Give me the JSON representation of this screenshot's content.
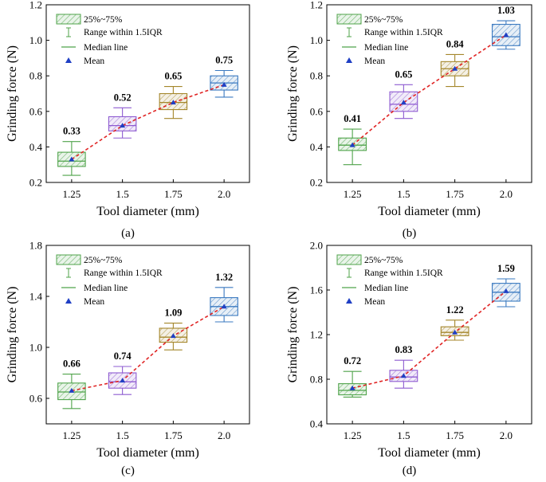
{
  "legend": {
    "box": "25%~75%",
    "range": "Range within 1.5IQR",
    "median": "Median line",
    "mean": "Mean"
  },
  "colors": {
    "box_fills": [
      "#4fa34a",
      "#8e5bd1",
      "#a4862a",
      "#3a79c0"
    ],
    "mean_marker": "#1f3fc4",
    "trend_line": "#e02424"
  },
  "chart_data": [
    {
      "type": "box",
      "caption": "(a)",
      "xlabel": "Tool diameter (mm)",
      "ylabel": "Grinding force (N)",
      "categories": [
        "1.25",
        "1.5",
        "1.75",
        "2.0"
      ],
      "ylim": [
        0.2,
        1.2
      ],
      "yticks": [
        "0.2",
        "0.4",
        "0.6",
        "0.8",
        "1.0",
        "1.2"
      ],
      "means": [
        0.33,
        0.52,
        0.65,
        0.75
      ],
      "mean_labels": [
        "0.33",
        "0.52",
        "0.65",
        "0.75"
      ],
      "boxes": [
        {
          "whisker_low": 0.24,
          "q1": 0.29,
          "median": 0.32,
          "q3": 0.37,
          "whisker_high": 0.43
        },
        {
          "whisker_low": 0.45,
          "q1": 0.49,
          "median": 0.52,
          "q3": 0.57,
          "whisker_high": 0.62
        },
        {
          "whisker_low": 0.56,
          "q1": 0.61,
          "median": 0.65,
          "q3": 0.7,
          "whisker_high": 0.74
        },
        {
          "whisker_low": 0.68,
          "q1": 0.72,
          "median": 0.76,
          "q3": 0.8,
          "whisker_high": 0.83
        }
      ]
    },
    {
      "type": "box",
      "caption": "(b)",
      "xlabel": "Tool diameter (mm)",
      "ylabel": "Grinding force (N)",
      "categories": [
        "1.25",
        "1.5",
        "1.75",
        "2.0"
      ],
      "ylim": [
        0.2,
        1.2
      ],
      "yticks": [
        "0.2",
        "0.4",
        "0.6",
        "0.8",
        "1.0",
        "1.2"
      ],
      "means": [
        0.41,
        0.65,
        0.84,
        1.03
      ],
      "mean_labels": [
        "0.41",
        "0.65",
        "0.84",
        "1.03"
      ],
      "boxes": [
        {
          "whisker_low": 0.3,
          "q1": 0.38,
          "median": 0.41,
          "q3": 0.45,
          "whisker_high": 0.5
        },
        {
          "whisker_low": 0.56,
          "q1": 0.6,
          "median": 0.64,
          "q3": 0.71,
          "whisker_high": 0.75
        },
        {
          "whisker_low": 0.74,
          "q1": 0.8,
          "median": 0.84,
          "q3": 0.88,
          "whisker_high": 0.92
        },
        {
          "whisker_low": 0.95,
          "q1": 0.97,
          "median": 1.02,
          "q3": 1.09,
          "whisker_high": 1.11
        }
      ]
    },
    {
      "type": "box",
      "caption": "(c)",
      "xlabel": "Tool diameter (mm)",
      "ylabel": "Grinding force (N)",
      "categories": [
        "1.25",
        "1.5",
        "1.75",
        "2.0"
      ],
      "ylim": [
        0.4,
        1.8
      ],
      "yticks": [
        "0.6",
        "1.0",
        "1.4",
        "1.8"
      ],
      "means": [
        0.66,
        0.74,
        1.09,
        1.32
      ],
      "mean_labels": [
        "0.66",
        "0.74",
        "1.09",
        "1.32"
      ],
      "boxes": [
        {
          "whisker_low": 0.52,
          "q1": 0.59,
          "median": 0.65,
          "q3": 0.72,
          "whisker_high": 0.79
        },
        {
          "whisker_low": 0.63,
          "q1": 0.68,
          "median": 0.73,
          "q3": 0.8,
          "whisker_high": 0.85
        },
        {
          "whisker_low": 0.98,
          "q1": 1.04,
          "median": 1.08,
          "q3": 1.15,
          "whisker_high": 1.19
        },
        {
          "whisker_low": 1.2,
          "q1": 1.25,
          "median": 1.32,
          "q3": 1.39,
          "whisker_high": 1.47
        }
      ]
    },
    {
      "type": "box",
      "caption": "(d)",
      "xlabel": "Tool diameter (mm)",
      "ylabel": "Grinding force (N)",
      "categories": [
        "1.25",
        "1.5",
        "1.75",
        "2.0"
      ],
      "ylim": [
        0.4,
        2.0
      ],
      "yticks": [
        "0.4",
        "0.8",
        "1.2",
        "1.6",
        "2.0"
      ],
      "means": [
        0.72,
        0.83,
        1.22,
        1.59
      ],
      "mean_labels": [
        "0.72",
        "0.83",
        "1.22",
        "1.59"
      ],
      "boxes": [
        {
          "whisker_low": 0.64,
          "q1": 0.66,
          "median": 0.7,
          "q3": 0.76,
          "whisker_high": 0.87
        },
        {
          "whisker_low": 0.72,
          "q1": 0.78,
          "median": 0.82,
          "q3": 0.88,
          "whisker_high": 0.97
        },
        {
          "whisker_low": 1.15,
          "q1": 1.19,
          "median": 1.22,
          "q3": 1.27,
          "whisker_high": 1.33
        },
        {
          "whisker_low": 1.45,
          "q1": 1.5,
          "median": 1.58,
          "q3": 1.66,
          "whisker_high": 1.7
        }
      ]
    }
  ]
}
